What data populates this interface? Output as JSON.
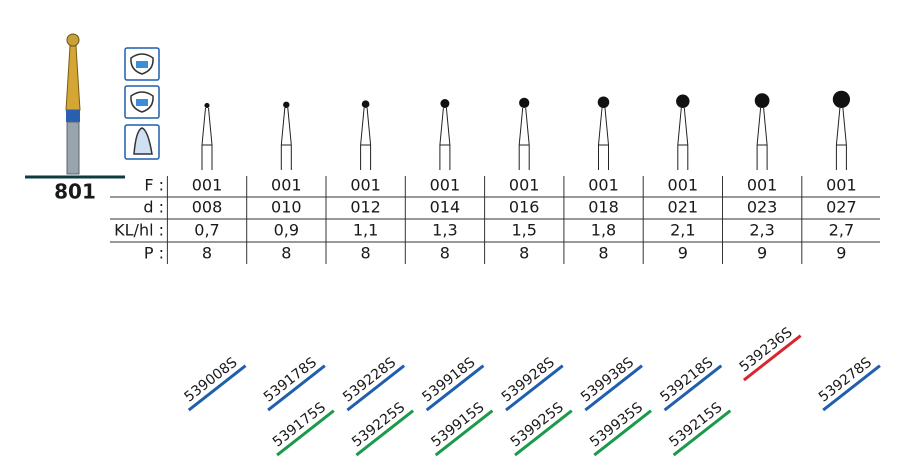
{
  "product": "801",
  "table": {
    "labels": [
      "F :",
      "d :",
      "KL/hl :",
      "P :"
    ],
    "columns": [
      [
        "001",
        "008",
        "0,7",
        "8"
      ],
      [
        "001",
        "010",
        "0,9",
        "8"
      ],
      [
        "001",
        "012",
        "1,1",
        "8"
      ],
      [
        "001",
        "014",
        "1,3",
        "8"
      ],
      [
        "001",
        "016",
        "1,5",
        "8"
      ],
      [
        "001",
        "018",
        "1,8",
        "8"
      ],
      [
        "001",
        "021",
        "2,1",
        "9"
      ],
      [
        "001",
        "023",
        "2,3",
        "9"
      ],
      [
        "001",
        "027",
        "2,7",
        "9"
      ]
    ]
  },
  "articles": [
    [
      {
        "code": "539008S",
        "color": "#1f5fae"
      }
    ],
    [
      {
        "code": "539178S",
        "color": "#1f5fae"
      },
      {
        "code": "539175S",
        "color": "#1a9a4a"
      }
    ],
    [
      {
        "code": "539228S",
        "color": "#1f5fae"
      },
      {
        "code": "539225S",
        "color": "#1a9a4a"
      }
    ],
    [
      {
        "code": "539918S",
        "color": "#1f5fae"
      },
      {
        "code": "539915S",
        "color": "#1a9a4a"
      }
    ],
    [
      {
        "code": "539928S",
        "color": "#1f5fae"
      },
      {
        "code": "539925S",
        "color": "#1a9a4a"
      }
    ],
    [
      {
        "code": "539938S",
        "color": "#1f5fae"
      },
      {
        "code": "539935S",
        "color": "#1a9a4a"
      }
    ],
    [
      {
        "code": "539218S",
        "color": "#1f5fae"
      },
      {
        "code": "539215S",
        "color": "#1a9a4a"
      }
    ],
    [
      {
        "code": "539236S",
        "color": "#d8262e"
      }
    ],
    [
      {
        "code": "539278S",
        "color": "#1f5fae"
      }
    ]
  ]
}
